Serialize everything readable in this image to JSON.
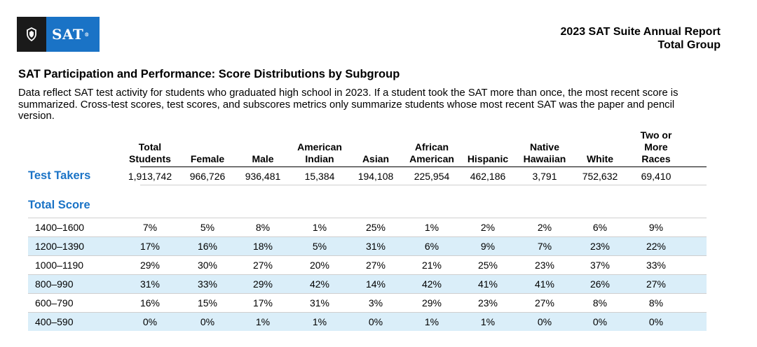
{
  "logo": {
    "text": "SAT",
    "mark": "®",
    "icon": "shield-icon",
    "left_color": "#1a1a1a",
    "right_color": "#1a73c6"
  },
  "report": {
    "title": "2023 SAT Suite Annual Report",
    "subtitle": "Total Group"
  },
  "section": {
    "title": "SAT Participation and Performance: Score Distributions by Subgroup",
    "description": "Data reflect SAT test activity for students who graduated high school in 2023. If a student took the SAT more than once, the most recent score is summarized. Cross-test scores, test scores, and subscores metrics only summarize students whose most recent SAT was the paper and pencil version."
  },
  "table": {
    "columns": [
      [
        "Total",
        "Students"
      ],
      [
        "Female"
      ],
      [
        "Male"
      ],
      [
        "American",
        "Indian"
      ],
      [
        "Asian"
      ],
      [
        "African",
        "American"
      ],
      [
        "Hispanic"
      ],
      [
        "Native",
        "Hawaiian"
      ],
      [
        "White"
      ],
      [
        "Two or",
        "More",
        "Races"
      ]
    ],
    "test_takers": {
      "label": "Test Takers",
      "values": [
        "1,913,742",
        "966,726",
        "936,481",
        "15,384",
        "194,108",
        "225,954",
        "462,186",
        "3,791",
        "752,632",
        "69,410"
      ]
    },
    "total_score": {
      "label": "Total Score",
      "rows": [
        {
          "range": "1400–1600",
          "values": [
            "7%",
            "5%",
            "8%",
            "1%",
            "25%",
            "1%",
            "2%",
            "2%",
            "6%",
            "9%"
          ]
        },
        {
          "range": "1200–1390",
          "values": [
            "17%",
            "16%",
            "18%",
            "5%",
            "31%",
            "6%",
            "9%",
            "7%",
            "23%",
            "22%"
          ]
        },
        {
          "range": "1000–1190",
          "values": [
            "29%",
            "30%",
            "27%",
            "20%",
            "27%",
            "21%",
            "25%",
            "23%",
            "37%",
            "33%"
          ]
        },
        {
          "range": "800–990",
          "values": [
            "31%",
            "33%",
            "29%",
            "42%",
            "14%",
            "42%",
            "41%",
            "41%",
            "26%",
            "27%"
          ]
        },
        {
          "range": "600–790",
          "values": [
            "16%",
            "15%",
            "17%",
            "31%",
            "3%",
            "29%",
            "23%",
            "27%",
            "8%",
            "8%"
          ]
        },
        {
          "range": "400–590",
          "values": [
            "0%",
            "0%",
            "1%",
            "1%",
            "0%",
            "1%",
            "1%",
            "0%",
            "0%",
            "0%"
          ]
        }
      ]
    }
  }
}
